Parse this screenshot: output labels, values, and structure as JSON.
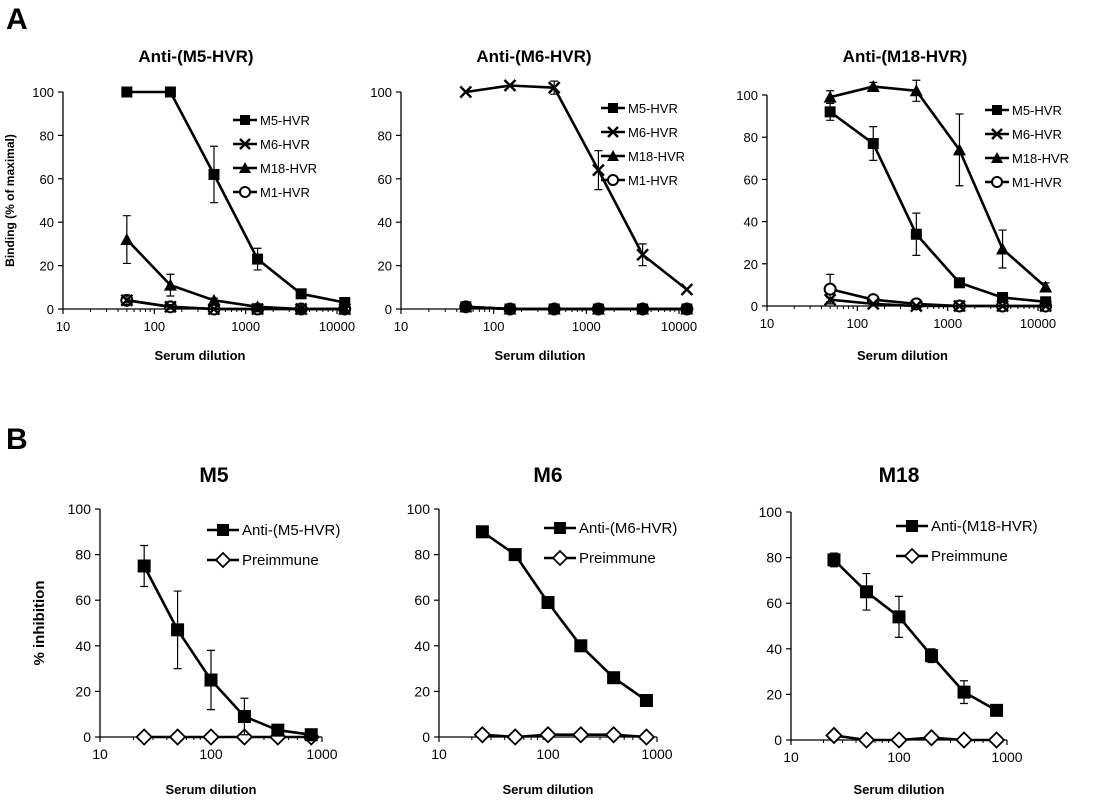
{
  "panels": {
    "a": "A",
    "b": "B"
  },
  "chart_data": [
    {
      "type": "line",
      "panel": "A",
      "title": "Anti-(M5-HVR)",
      "xlabel": "Serum dilution",
      "ylabel": "Binding (% of maximal)",
      "xscale": "log",
      "xlim": [
        10,
        10000
      ],
      "ylim": [
        0,
        100
      ],
      "xticks": [
        "10",
        "100",
        "1000",
        "10000"
      ],
      "yticks": [
        "0",
        "20",
        "40",
        "60",
        "80",
        "100"
      ],
      "x": [
        50,
        150,
        450,
        1350,
        4050,
        12150
      ],
      "legend": "top-right",
      "series": [
        {
          "name": "M5-HVR",
          "marker": "square",
          "values": [
            100,
            100,
            62,
            23,
            7,
            3
          ],
          "errors": [
            0,
            0,
            13,
            5,
            2,
            1
          ]
        },
        {
          "name": "M6-HVR",
          "marker": "x",
          "values": [
            4,
            1,
            0,
            0,
            0,
            0
          ],
          "errors": [
            2,
            1,
            0,
            0,
            0,
            0
          ]
        },
        {
          "name": "M18-HVR",
          "marker": "triangle",
          "values": [
            32,
            11,
            4,
            1,
            0,
            0
          ],
          "errors": [
            11,
            5,
            1,
            0,
            0,
            0
          ]
        },
        {
          "name": "M1-HVR",
          "marker": "circle",
          "values": [
            4,
            1,
            0,
            0,
            0,
            0
          ],
          "errors": [
            2,
            1,
            0,
            0,
            0,
            0
          ]
        }
      ]
    },
    {
      "type": "line",
      "panel": "A",
      "title": "Anti-(M6-HVR)",
      "xlabel": "Serum dilution",
      "ylabel": "",
      "xscale": "log",
      "xlim": [
        10,
        10000
      ],
      "ylim": [
        0,
        100
      ],
      "xticks": [
        "10",
        "100",
        "1000",
        "10000"
      ],
      "yticks": [
        "0",
        "20",
        "40",
        "60",
        "80",
        "100"
      ],
      "x": [
        50,
        150,
        450,
        1350,
        4050,
        12150
      ],
      "legend": "top-right",
      "series": [
        {
          "name": "M5-HVR",
          "marker": "square",
          "values": [
            1,
            0,
            0,
            0,
            0,
            0
          ],
          "errors": [
            0,
            0,
            0,
            0,
            0,
            0
          ]
        },
        {
          "name": "M6-HVR",
          "marker": "x",
          "values": [
            100,
            103,
            102,
            64,
            25,
            9
          ],
          "errors": [
            0,
            0,
            3,
            9,
            5,
            0
          ]
        },
        {
          "name": "M18-HVR",
          "marker": "triangle",
          "values": [
            1,
            0,
            0,
            0,
            0,
            0
          ],
          "errors": [
            0,
            0,
            0,
            0,
            0,
            0
          ]
        },
        {
          "name": "M1-HVR",
          "marker": "circle",
          "values": [
            1,
            0,
            0,
            0,
            0,
            0
          ],
          "errors": [
            0,
            0,
            0,
            0,
            0,
            0
          ]
        }
      ]
    },
    {
      "type": "line",
      "panel": "A",
      "title": "Anti-(M18-HVR)",
      "xlabel": "Serum dilution",
      "ylabel": "",
      "xscale": "log",
      "xlim": [
        10,
        10000
      ],
      "ylim": [
        0,
        100
      ],
      "xticks": [
        "10",
        "100",
        "1000",
        "10000"
      ],
      "yticks": [
        "0",
        "20",
        "40",
        "60",
        "80",
        "100"
      ],
      "x": [
        50,
        150,
        450,
        1350,
        4050,
        12150
      ],
      "legend": "top-right",
      "series": [
        {
          "name": "M5-HVR",
          "marker": "square",
          "values": [
            92,
            77,
            34,
            11,
            4,
            2
          ],
          "errors": [
            4,
            8,
            10,
            2,
            1,
            1
          ]
        },
        {
          "name": "M6-HVR",
          "marker": "x",
          "values": [
            3,
            1,
            0,
            0,
            0,
            0
          ],
          "errors": [
            1,
            0,
            0,
            0,
            0,
            0
          ]
        },
        {
          "name": "M18-HVR",
          "marker": "triangle",
          "values": [
            99,
            104,
            102,
            74,
            27,
            9
          ],
          "errors": [
            3,
            2,
            5,
            17,
            9,
            2
          ]
        },
        {
          "name": "M1-HVR",
          "marker": "circle",
          "values": [
            8,
            3,
            1,
            0,
            0,
            0
          ],
          "errors": [
            7,
            1,
            1,
            0,
            0,
            0
          ]
        }
      ]
    },
    {
      "type": "line",
      "panel": "B",
      "title": "M5",
      "xlabel": "Serum dilution",
      "ylabel": "% inhibition",
      "xscale": "log",
      "xlim": [
        10,
        1000
      ],
      "ylim": [
        0,
        100
      ],
      "xticks": [
        "10",
        "100",
        "1000"
      ],
      "yticks": [
        "0",
        "20",
        "40",
        "60",
        "80",
        "100"
      ],
      "x": [
        25,
        50,
        100,
        200,
        400,
        800
      ],
      "legend": "top-right",
      "series": [
        {
          "name": "Anti-(M5-HVR)",
          "marker": "square",
          "values": [
            75,
            47,
            25,
            9,
            3,
            1
          ],
          "errors": [
            9,
            17,
            13,
            8,
            0,
            0
          ]
        },
        {
          "name": "Preimmune",
          "marker": "diamond",
          "values": [
            0,
            0,
            0,
            0,
            0,
            0
          ],
          "errors": [
            0,
            0,
            0,
            0,
            0,
            0
          ]
        }
      ]
    },
    {
      "type": "line",
      "panel": "B",
      "title": "M6",
      "xlabel": "Serum dilution",
      "ylabel": "",
      "xscale": "log",
      "xlim": [
        10,
        1000
      ],
      "ylim": [
        0,
        100
      ],
      "xticks": [
        "10",
        "100",
        "1000"
      ],
      "yticks": [
        "0",
        "20",
        "40",
        "60",
        "80",
        "100"
      ],
      "x": [
        25,
        50,
        100,
        200,
        400,
        800
      ],
      "legend": "top-right",
      "series": [
        {
          "name": "Anti-(M6-HVR)",
          "marker": "square",
          "values": [
            90,
            80,
            59,
            40,
            26,
            16
          ],
          "errors": [
            0,
            0,
            0,
            0,
            1,
            0
          ]
        },
        {
          "name": "Preimmune",
          "marker": "diamond",
          "values": [
            1,
            0,
            1,
            1,
            1,
            0
          ],
          "errors": [
            0,
            0,
            0,
            0,
            0,
            0
          ]
        }
      ]
    },
    {
      "type": "line",
      "panel": "B",
      "title": "M18",
      "xlabel": "Serum dilution",
      "ylabel": "",
      "xscale": "log",
      "xlim": [
        10,
        1000
      ],
      "ylim": [
        0,
        100
      ],
      "xticks": [
        "10",
        "100",
        "1000"
      ],
      "yticks": [
        "0",
        "20",
        "40",
        "60",
        "80",
        "100"
      ],
      "x": [
        25,
        50,
        100,
        200,
        400,
        800
      ],
      "legend": "top-right",
      "series": [
        {
          "name": "Anti-(M18-HVR)",
          "marker": "square",
          "values": [
            79,
            65,
            54,
            37,
            21,
            13
          ],
          "errors": [
            3,
            8,
            9,
            3,
            5,
            0
          ]
        },
        {
          "name": "Preimmune",
          "marker": "diamond",
          "values": [
            2,
            0,
            0,
            1,
            0,
            0
          ],
          "errors": [
            2,
            0,
            0,
            0,
            0,
            0
          ]
        }
      ]
    }
  ]
}
